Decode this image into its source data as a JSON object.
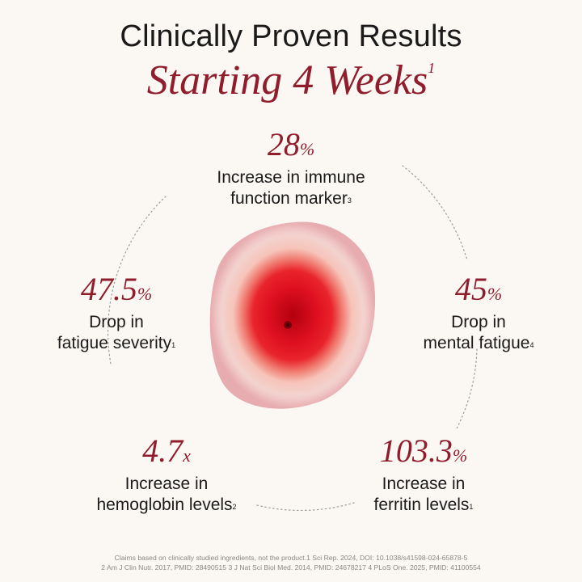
{
  "header": {
    "title": "Clinically Proven Results",
    "subtitle": "Starting 4 Weeks",
    "subtitle_ref": "1"
  },
  "stats": [
    {
      "value": "28",
      "unit": "%",
      "line1": "Increase in immune",
      "line2": "function marker",
      "ref": "3"
    },
    {
      "value": "47.5",
      "unit": "%",
      "line1": "Drop in",
      "line2": "fatigue severity",
      "ref": "1"
    },
    {
      "value": "45",
      "unit": "%",
      "line1": "Drop in",
      "line2": "mental fatigue",
      "ref": "4"
    },
    {
      "value": "4.7",
      "unit": "x",
      "line1": "Increase in",
      "line2": "hemoglobin levels",
      "ref": "2"
    },
    {
      "value": "103.3",
      "unit": "%",
      "line1": "Increase in",
      "line2": "ferritin levels",
      "ref": "1"
    }
  ],
  "footnote": {
    "line1": "Claims based on clinically studied ingredients, not the product.1 Sci Rep. 2024, DOI: 10.1038/s41598-024-65878-5",
    "line2": "2 Am J Clin Nutr. 2017, PMID: 28490515 3 J Nat Sci Biol Med. 2014, PMID: 24678217 4 PLoS One. 2025, PMID: 41100554"
  },
  "colors": {
    "accent": "#8f1d2c",
    "text": "#1a1a1a",
    "background": "#fbf8f4",
    "drop_core": "#d9101e"
  }
}
